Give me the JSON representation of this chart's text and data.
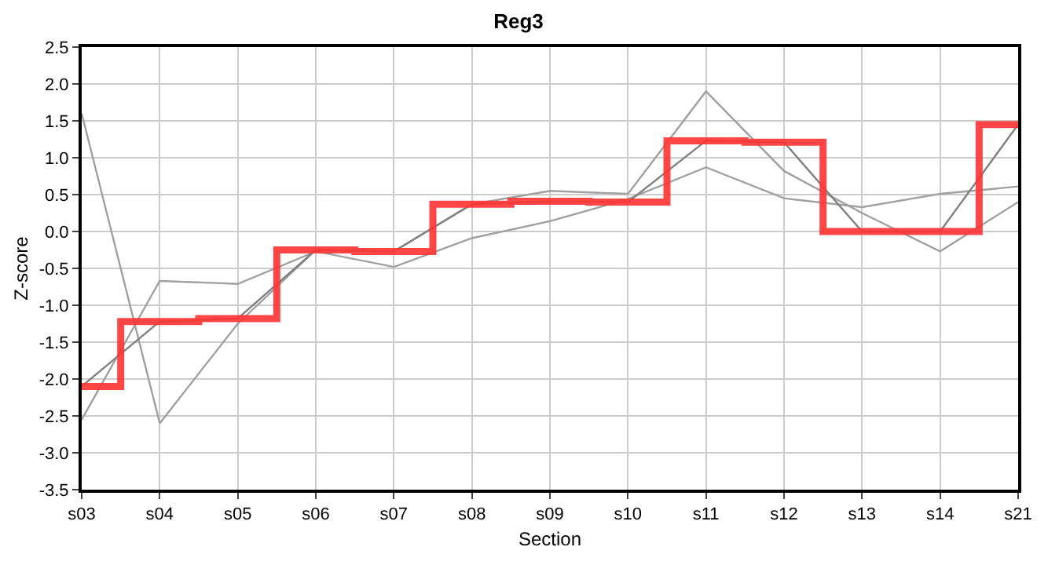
{
  "chart_data": {
    "type": "line",
    "title": "Reg3",
    "xlabel": "Section",
    "ylabel": "Z-score",
    "categories": [
      "s03",
      "s04",
      "s05",
      "s06",
      "s07",
      "s08",
      "s09",
      "s10",
      "s11",
      "s12",
      "s13",
      "s14",
      "s21"
    ],
    "ylim": [
      -3.5,
      2.5
    ],
    "yticks": [
      {
        "value": -3.5,
        "label": "-3.5"
      },
      {
        "value": -3,
        "label": "-3.0"
      },
      {
        "value": -2.5,
        "label": "-2.5"
      },
      {
        "value": -2,
        "label": "-2.0"
      },
      {
        "value": -1.5,
        "label": "-1.5"
      },
      {
        "value": -1,
        "label": "-1.0"
      },
      {
        "value": -0.5,
        "label": "-0.5"
      },
      {
        "value": 0,
        "label": "0.0"
      },
      {
        "value": 0.5,
        "label": "0.5"
      },
      {
        "value": 1,
        "label": "1.0"
      },
      {
        "value": 1.5,
        "label": "1.5"
      },
      {
        "value": 2,
        "label": "2.0"
      },
      {
        "value": 2.5,
        "label": "2.5"
      }
    ],
    "grid": true,
    "series": [
      {
        "color": "#a0a0a0",
        "values": [
          1.6,
          -2.6,
          -1.25,
          -0.25,
          -0.27,
          0.37,
          0.55,
          0.51,
          1.9,
          0.82,
          0.25,
          -0.27,
          0.4
        ]
      },
      {
        "color": "#a0a0a0",
        "values": [
          -2.55,
          -0.67,
          -0.71,
          -0.27,
          -0.48,
          -0.09,
          0.14,
          0.44,
          0.87,
          0.45,
          0.33,
          0.51,
          0.61
        ]
      },
      {
        "color": "#808080",
        "values": [
          -2.1,
          -1.22,
          -1.18,
          -0.25,
          -0.27,
          0.37,
          0.41,
          0.4,
          1.23,
          1.21,
          0,
          0,
          1.45
        ]
      },
      {
        "type": "step",
        "color": "#ff3333",
        "values": [
          -2.1,
          -1.22,
          -1.18,
          -0.25,
          -0.27,
          0.37,
          0.41,
          0.4,
          1.23,
          1.21,
          0,
          0,
          1.45
        ]
      }
    ]
  }
}
